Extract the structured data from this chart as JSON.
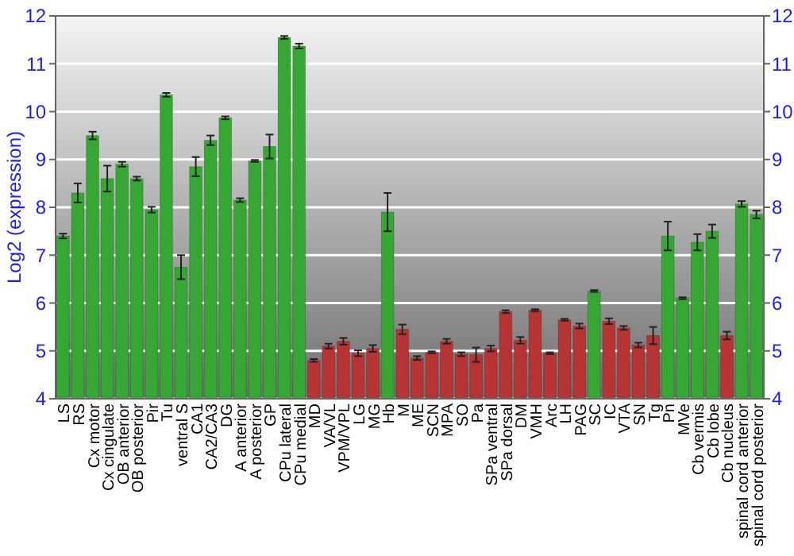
{
  "chart_data": {
    "type": "bar",
    "ylabel": "Log2 (expression)",
    "categories": [
      "LS",
      "RS",
      "Cx motor",
      "Cx cingulate",
      "OB anterior",
      "OB posterior",
      "Pir",
      "Tu",
      "ventral S",
      "CA1",
      "CA2/CA3",
      "DG",
      "A anterior",
      "A posterior",
      "GP",
      "CPu lateral",
      "CPu medial",
      "MD",
      "VA/VL",
      "VPM/VPL",
      "LG",
      "MG",
      "Hb",
      "M",
      "ME",
      "SCN",
      "MPA",
      "SO",
      "Pa",
      "SPa ventral",
      "SPa dorsal",
      "DM",
      "VMH",
      "Arc",
      "LH",
      "PAG",
      "SC",
      "IC",
      "VTA",
      "SN",
      "Tg",
      "Pn",
      "MVe",
      "Cb vermis",
      "Cb lobe",
      "Cb nucleus",
      "spinal cord anterior",
      "spinal cord posterior"
    ],
    "values": [
      7.4,
      8.3,
      9.5,
      8.6,
      8.9,
      8.6,
      7.95,
      10.35,
      6.75,
      8.85,
      9.4,
      9.87,
      8.15,
      8.97,
      9.27,
      11.55,
      11.37,
      4.8,
      5.1,
      5.2,
      4.95,
      5.05,
      7.9,
      5.45,
      4.85,
      4.97,
      5.2,
      4.93,
      4.92,
      5.05,
      5.82,
      5.22,
      5.85,
      4.95,
      5.65,
      5.52,
      6.25,
      5.62,
      5.48,
      5.12,
      5.32,
      7.4,
      6.1,
      7.27,
      7.5,
      5.32,
      8.07,
      7.85
    ],
    "errors": [
      0.05,
      0.2,
      0.08,
      0.27,
      0.05,
      0.04,
      0.06,
      0.04,
      0.25,
      0.2,
      0.1,
      0.03,
      0.04,
      0.02,
      0.25,
      0.03,
      0.05,
      0.03,
      0.05,
      0.07,
      0.06,
      0.07,
      0.4,
      0.1,
      0.04,
      0.02,
      0.05,
      0.04,
      0.15,
      0.06,
      0.03,
      0.07,
      0.02,
      0.02,
      0.02,
      0.05,
      0.02,
      0.06,
      0.04,
      0.05,
      0.18,
      0.3,
      0.02,
      0.17,
      0.14,
      0.08,
      0.06,
      0.08
    ],
    "colors": [
      "#35a834",
      "#35a834",
      "#35a834",
      "#35a834",
      "#35a834",
      "#35a834",
      "#35a834",
      "#35a834",
      "#35a834",
      "#35a834",
      "#35a834",
      "#35a834",
      "#35a834",
      "#35a834",
      "#35a834",
      "#35a834",
      "#35a834",
      "#b83434",
      "#b83434",
      "#b83434",
      "#b83434",
      "#b83434",
      "#35a834",
      "#b83434",
      "#b83434",
      "#b83434",
      "#b83434",
      "#b83434",
      "#b83434",
      "#b83434",
      "#b83434",
      "#b83434",
      "#b83434",
      "#b83434",
      "#b83434",
      "#b83434",
      "#35a834",
      "#b83434",
      "#b83434",
      "#b83434",
      "#b83434",
      "#35a834",
      "#35a834",
      "#35a834",
      "#35a834",
      "#b83434",
      "#35a834",
      "#35a834"
    ],
    "ylim": [
      4,
      12
    ],
    "yticks": [
      4,
      5,
      6,
      7,
      8,
      9,
      10,
      11,
      12
    ],
    "y2lim": [
      4,
      12
    ],
    "y2ticks": [
      4,
      5,
      6,
      7,
      8,
      9,
      10,
      11,
      12
    ],
    "grid": "y"
  }
}
